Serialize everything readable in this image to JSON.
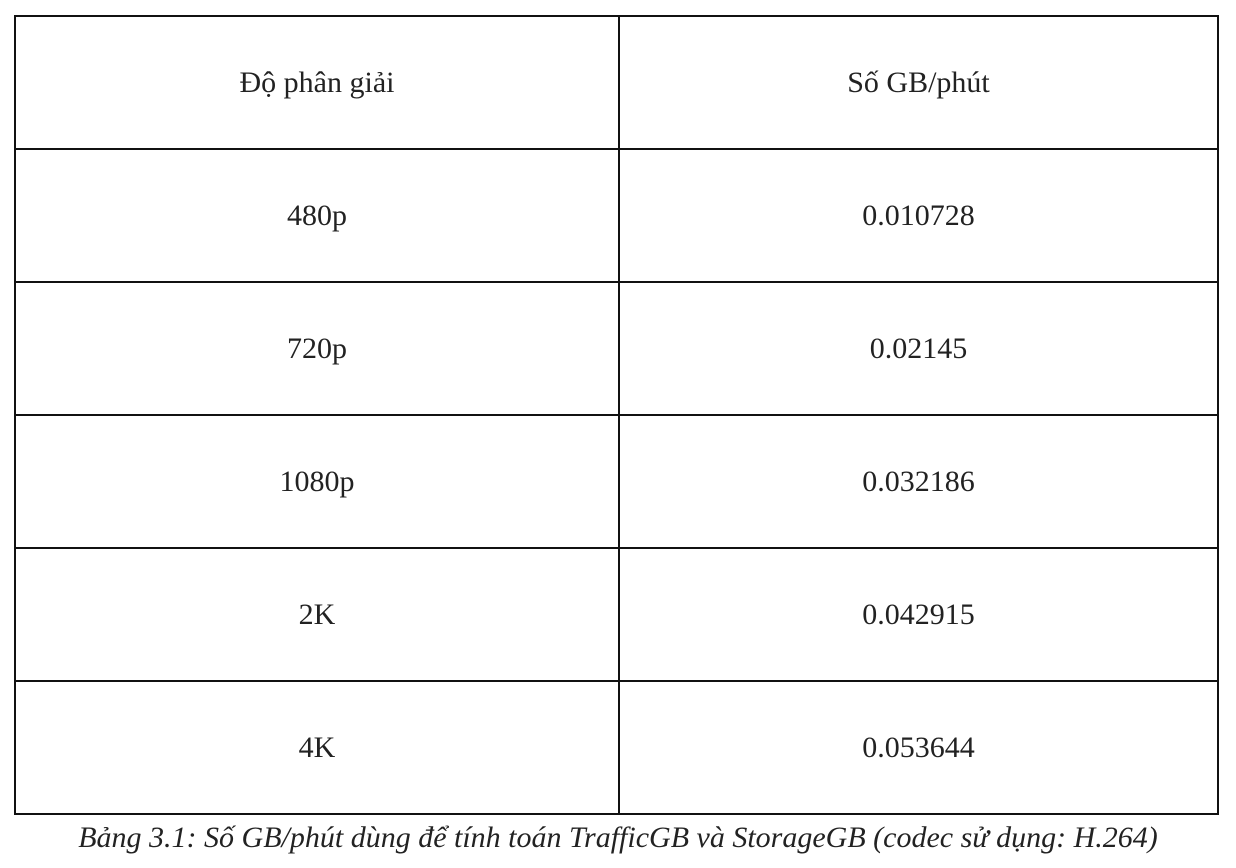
{
  "table": {
    "headers": [
      "Độ phân giải",
      "Số GB/phút"
    ],
    "rows": [
      [
        "480p",
        "0.010728"
      ],
      [
        "720p",
        "0.02145"
      ],
      [
        "1080p",
        "0.032186"
      ],
      [
        "2K",
        "0.042915"
      ],
      [
        "4K",
        "0.053644"
      ]
    ]
  },
  "caption": "Bảng 3.1: Số GB/phút dùng để tính toán TrafficGB và StorageGB (codec sử dụng: H.264)"
}
